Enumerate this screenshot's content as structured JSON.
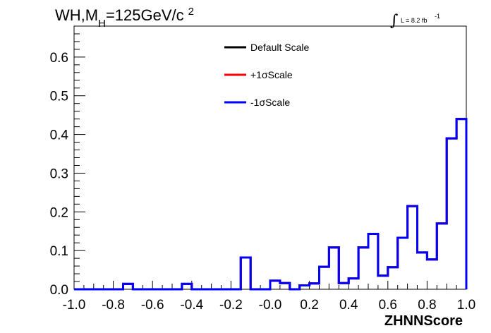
{
  "chart_data": {
    "type": "line",
    "step": true,
    "title": {
      "prefix": "WH,M",
      "sub": "H",
      "suffix": "=125GeV/c",
      "sup": "2"
    },
    "lumi_label": "L = 8.2 fb",
    "lumi_sup": "-1",
    "xlabel": "ZHNNScore",
    "ylabel": "",
    "xlim": [
      -1.0,
      1.0
    ],
    "ylim": [
      0,
      0.68
    ],
    "x_ticks": [
      "-1.0",
      "-0.8",
      "-0.6",
      "-0.4",
      "-0.2",
      "-0.0",
      "0.2",
      "0.4",
      "0.6",
      "0.8",
      "1.0"
    ],
    "y_ticks": [
      "0.0",
      "0.1",
      "0.2",
      "0.3",
      "0.4",
      "0.5",
      "0.6"
    ],
    "bin_edges": [
      -1.0,
      -0.95,
      -0.9,
      -0.85,
      -0.8,
      -0.75,
      -0.7,
      -0.65,
      -0.6,
      -0.55,
      -0.5,
      -0.45,
      -0.4,
      -0.35,
      -0.3,
      -0.25,
      -0.2,
      -0.15,
      -0.1,
      -0.05,
      0.0,
      0.05,
      0.1,
      0.15,
      0.2,
      0.25,
      0.3,
      0.35,
      0.4,
      0.45,
      0.5,
      0.55,
      0.6,
      0.65,
      0.7,
      0.75,
      0.8,
      0.85,
      0.9,
      0.95,
      1.0
    ],
    "series": [
      {
        "name": "Default Scale",
        "color": "#000000",
        "values": [
          0,
          0,
          0,
          0,
          0,
          0.014,
          0,
          0,
          0,
          0,
          0,
          0.014,
          0,
          0,
          0,
          0,
          0,
          0.082,
          0,
          0,
          0.022,
          0.016,
          0,
          0.01,
          0.015,
          0.058,
          0.108,
          0.016,
          0.028,
          0.108,
          0.143,
          0.035,
          0.057,
          0.133,
          0.215,
          0.095,
          0.077,
          0.17,
          0.39,
          0.44
        ]
      },
      {
        "name": "+1σScale",
        "color": "#ff0000",
        "values": [
          0,
          0,
          0,
          0,
          0,
          0.014,
          0,
          0,
          0,
          0,
          0,
          0.014,
          0,
          0,
          0,
          0,
          0,
          0.082,
          0,
          0,
          0.022,
          0.016,
          0,
          0.01,
          0.015,
          0.058,
          0.108,
          0.016,
          0.028,
          0.108,
          0.143,
          0.035,
          0.057,
          0.133,
          0.215,
          0.095,
          0.077,
          0.17,
          0.39,
          0.44
        ]
      },
      {
        "name": "-1σScale",
        "color": "#0000ff",
        "values": [
          0,
          0,
          0,
          0,
          0,
          0.014,
          0,
          0,
          0,
          0,
          0,
          0.014,
          0,
          0,
          0,
          0,
          0,
          0.082,
          0,
          0,
          0.022,
          0.016,
          0,
          0.01,
          0.015,
          0.058,
          0.108,
          0.016,
          0.028,
          0.108,
          0.143,
          0.035,
          0.057,
          0.133,
          0.215,
          0.095,
          0.077,
          0.17,
          0.39,
          0.44
        ]
      }
    ],
    "legend": {
      "placement": "top-center",
      "entries": [
        "Default Scale",
        "+1σScale",
        "-1σScale"
      ]
    },
    "grid": false
  }
}
